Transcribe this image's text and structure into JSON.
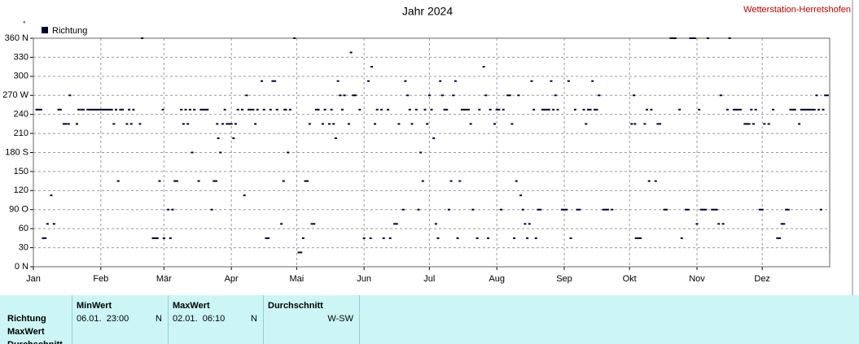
{
  "header": {
    "station": "Wetterstation-Herretshofen"
  },
  "chart_data": {
    "type": "scatter",
    "title": "Jahr 2024",
    "ylabel": "°",
    "grid": true,
    "xlim": [
      0,
      366
    ],
    "ylim": [
      0,
      360
    ],
    "xticks": [
      {
        "value": 0,
        "label": "Jan"
      },
      {
        "value": 31,
        "label": "Feb"
      },
      {
        "value": 60,
        "label": "Mär"
      },
      {
        "value": 91,
        "label": "Apr"
      },
      {
        "value": 121,
        "label": "Mai"
      },
      {
        "value": 152,
        "label": "Jun"
      },
      {
        "value": 182,
        "label": "Jul"
      },
      {
        "value": 213,
        "label": "Aug"
      },
      {
        "value": 244,
        "label": "Sep"
      },
      {
        "value": 274,
        "label": "Okt"
      },
      {
        "value": 305,
        "label": "Nov"
      },
      {
        "value": 335,
        "label": "Dez"
      }
    ],
    "yticks": [
      {
        "value": 0,
        "label": "0 N"
      },
      30,
      60,
      {
        "value": 90,
        "label": "90 O"
      },
      120,
      150,
      {
        "value": 180,
        "label": "180 S"
      },
      210,
      240,
      {
        "value": 270,
        "label": "270 W"
      },
      300,
      330,
      {
        "value": 360,
        "label": "360 N"
      }
    ],
    "x": [
      1.5,
      2.5,
      3.5,
      4.5,
      5.5,
      6.5,
      8.2,
      9.5,
      11.6,
      12.5,
      14,
      15,
      16.2,
      16.8,
      20,
      20.8,
      22,
      23,
      25,
      26,
      27,
      28,
      29,
      30,
      31,
      32,
      33,
      34,
      35,
      36,
      37,
      38,
      39,
      40,
      41,
      43,
      44,
      45,
      46,
      49,
      50,
      55,
      56,
      57,
      58,
      59.5,
      60,
      62,
      63,
      64,
      65,
      66,
      68,
      69,
      70,
      71,
      72,
      73,
      74,
      76,
      77,
      78,
      79,
      80,
      82,
      83,
      84,
      84.5,
      85,
      86,
      87,
      88,
      89,
      90,
      91,
      92,
      93,
      94,
      96,
      97,
      98,
      99,
      100,
      101,
      102,
      103,
      105,
      106,
      107,
      108,
      109,
      110,
      111,
      112,
      114,
      115,
      115.5,
      116,
      117,
      118,
      120,
      122,
      123,
      124,
      125,
      126,
      127,
      128,
      129,
      130,
      131,
      133,
      134,
      136,
      137,
      138,
      139,
      140,
      141,
      142,
      143,
      145,
      146,
      147,
      148,
      150,
      152,
      154,
      155,
      155.5,
      157,
      158,
      160,
      161,
      163,
      164,
      166,
      167,
      168,
      170,
      171,
      172,
      173,
      174,
      176,
      177,
      178,
      179,
      180,
      181,
      182,
      183,
      184,
      185,
      186,
      187,
      188,
      189,
      190,
      191,
      192,
      193,
      194,
      195,
      196,
      197,
      198,
      199,
      200,
      201,
      202,
      204,
      205,
      207,
      208,
      209,
      210,
      212,
      213,
      214,
      215,
      216,
      218,
      219,
      220,
      221,
      222,
      223,
      224,
      225,
      226,
      227,
      228,
      229,
      230,
      231,
      232,
      233,
      234,
      235,
      236,
      237,
      238,
      239,
      240,
      241,
      243,
      244,
      245,
      246,
      247,
      249,
      250,
      251,
      253,
      254,
      255,
      256,
      257,
      258,
      259,
      260,
      262,
      263,
      264,
      266,
      275,
      276,
      276.5,
      277,
      278,
      279,
      281,
      282,
      283,
      284,
      286,
      287,
      288,
      290,
      291,
      293,
      294,
      295,
      297,
      298,
      300,
      301,
      302,
      303,
      304,
      305,
      306,
      307,
      308,
      309,
      310,
      312,
      313,
      314,
      315,
      316,
      317,
      319,
      320,
      322,
      323,
      324,
      325,
      327,
      328,
      329,
      330,
      331,
      332,
      334,
      335,
      336,
      338,
      340,
      342,
      343,
      344,
      345,
      346,
      347,
      348,
      349,
      350,
      352,
      353,
      354,
      355,
      356,
      357,
      358,
      359,
      360,
      361,
      362,
      363,
      364,
      365
    ],
    "series": [
      {
        "name": "Richtung",
        "color": "#000033",
        "values": [
          247.5,
          247.5,
          247.5,
          45,
          45,
          67.5,
          112.5,
          67.5,
          247.5,
          247.5,
          225,
          225,
          225,
          270,
          225,
          247.5,
          247.5,
          247.5,
          247.5,
          247.5,
          247.5,
          247.5,
          247.5,
          247.5,
          247.5,
          247.5,
          247.5,
          247.5,
          247.5,
          247.5,
          225,
          247.5,
          135,
          247.5,
          247.5,
          225,
          247.5,
          225,
          247.5,
          225,
          360,
          45,
          45,
          45,
          135,
          247.5,
          45,
          90,
          45,
          90,
          135,
          135,
          247.5,
          225,
          247.5,
          225,
          247.5,
          180,
          247.5,
          135,
          247.5,
          247.5,
          247.5,
          247.5,
          90,
          135,
          135,
          225,
          202.5,
          180,
          225,
          247.5,
          225,
          225,
          225,
          202.5,
          225,
          247.5,
          247.5,
          112.5,
          270,
          247.5,
          247.5,
          247.5,
          225,
          247.5,
          292.5,
          247.5,
          45,
          45,
          247.5,
          292.5,
          292.5,
          247.5,
          67.5,
          135,
          247.5,
          247.5,
          180,
          247.5,
          360,
          22.5,
          22.5,
          45,
          135,
          135,
          225,
          67.5,
          67.5,
          247.5,
          247.5,
          225,
          247.5,
          225,
          247.5,
          225,
          202.5,
          292.5,
          270,
          247.5,
          270,
          225,
          337.5,
          270,
          270,
          247.5,
          45,
          292.5,
          45,
          315,
          225,
          247.5,
          247.5,
          45,
          247.5,
          45,
          67.5,
          67.5,
          225,
          90,
          292.5,
          270,
          247.5,
          225,
          247.5,
          90,
          180,
          135,
          247.5,
          225,
          270,
          247.5,
          202.5,
          67.5,
          45,
          292.5,
          270,
          247.5,
          247.5,
          90,
          135,
          270,
          292.5,
          45,
          135,
          247.5,
          247.5,
          247.5,
          247.5,
          225,
          90,
          45,
          247.5,
          315,
          270,
          45,
          247.5,
          225,
          247.5,
          247.5,
          90,
          247.5,
          270,
          270,
          225,
          45,
          135,
          270,
          112.5,
          90,
          67.5,
          45,
          67.5,
          292.5,
          247.5,
          45,
          90,
          90,
          247.5,
          247.5,
          247.5,
          247.5,
          292.5,
          247.5,
          270,
          247.5,
          90,
          90,
          90,
          292.5,
          45,
          247.5,
          90,
          90,
          247.5,
          225,
          247.5,
          247.5,
          292.5,
          247.5,
          247.5,
          270,
          90,
          90,
          90,
          90,
          225,
          270,
          225,
          45,
          45,
          45,
          225,
          247.5,
          135,
          247.5,
          135,
          225,
          225,
          90,
          90,
          360,
          360,
          360,
          247.5,
          45,
          90,
          90,
          360,
          360,
          360,
          67.5,
          247.5,
          90,
          90,
          90,
          360,
          90,
          90,
          90,
          67.5,
          270,
          67.5,
          247.5,
          360,
          247.5,
          247.5,
          247.5,
          247.5,
          225,
          225,
          225,
          247.5,
          225,
          247.5,
          90,
          90,
          225,
          225,
          247.5,
          45,
          45,
          67.5,
          67.5,
          90,
          90,
          247.5,
          247.5,
          247.5,
          225,
          247.5,
          247.5,
          247.5,
          247.5,
          247.5,
          247.5,
          247.5,
          270,
          247.5,
          90,
          247.5,
          270,
          270
        ]
      }
    ]
  },
  "summary": {
    "row_labels": [
      "Richtung",
      "MaxWert",
      "Durchschnitt"
    ],
    "columns": [
      {
        "header": "MinWert",
        "time": "06.01.  23:00",
        "dir": "N"
      },
      {
        "header": "MaxWert",
        "time": "02.01.  06:10",
        "dir": "N"
      },
      {
        "header": "Durchschnitt",
        "dir": "W-SW"
      }
    ]
  }
}
